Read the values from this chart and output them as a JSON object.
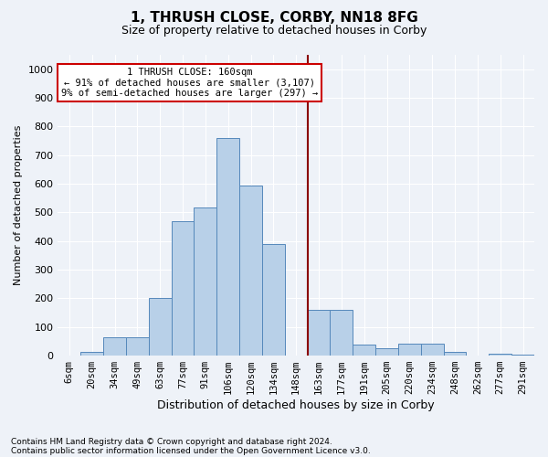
{
  "title1": "1, THRUSH CLOSE, CORBY, NN18 8FG",
  "title2": "Size of property relative to detached houses in Corby",
  "xlabel": "Distribution of detached houses by size in Corby",
  "ylabel": "Number of detached properties",
  "categories": [
    "6sqm",
    "20sqm",
    "34sqm",
    "49sqm",
    "63sqm",
    "77sqm",
    "91sqm",
    "106sqm",
    "120sqm",
    "134sqm",
    "148sqm",
    "163sqm",
    "177sqm",
    "191sqm",
    "205sqm",
    "220sqm",
    "234sqm",
    "248sqm",
    "262sqm",
    "277sqm",
    "291sqm"
  ],
  "values": [
    0,
    13,
    65,
    65,
    200,
    470,
    518,
    760,
    595,
    390,
    0,
    160,
    160,
    40,
    27,
    42,
    42,
    12,
    0,
    8,
    5
  ],
  "bar_color": "#b8d0e8",
  "bar_edge_color": "#5588bb",
  "vline_x_index": 11,
  "vline_color": "#8b0000",
  "annotation_title": "1 THRUSH CLOSE: 160sqm",
  "annotation_line1": "← 91% of detached houses are smaller (3,107)",
  "annotation_line2": "9% of semi-detached houses are larger (297) →",
  "annotation_box_color": "#ffffff",
  "annotation_border_color": "#cc0000",
  "ylim": [
    0,
    1050
  ],
  "yticks": [
    0,
    100,
    200,
    300,
    400,
    500,
    600,
    700,
    800,
    900,
    1000
  ],
  "footer1": "Contains HM Land Registry data © Crown copyright and database right 2024.",
  "footer2": "Contains public sector information licensed under the Open Government Licence v3.0.",
  "bg_color": "#eef2f8",
  "plot_bg_color": "#eef2f8",
  "title1_fontsize": 11,
  "title2_fontsize": 9,
  "ylabel_fontsize": 8,
  "xlabel_fontsize": 9,
  "tick_fontsize": 7.5,
  "ytick_fontsize": 8,
  "footer_fontsize": 6.5
}
